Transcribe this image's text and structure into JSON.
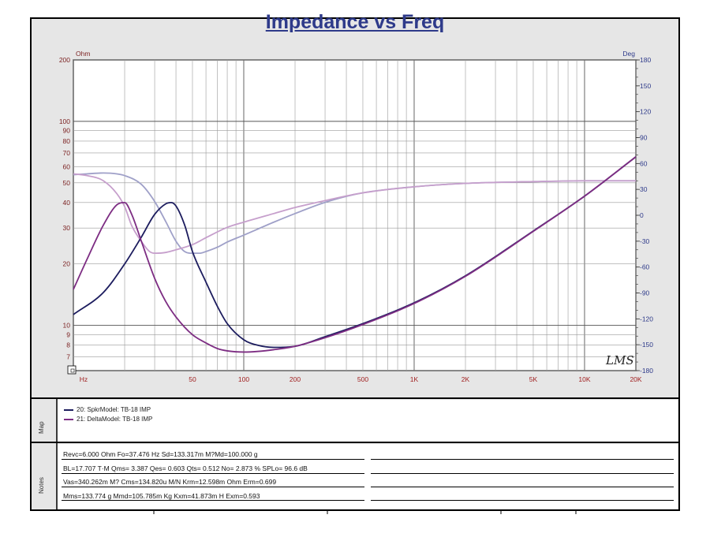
{
  "chart_data": {
    "type": "line",
    "title": "Impedance vs Freq",
    "x_scale": "log",
    "x_range": [
      10,
      20000
    ],
    "x_ticks": [
      {
        "value": 10,
        "label": "Hz"
      },
      {
        "value": 50,
        "label": "50"
      },
      {
        "value": 100,
        "label": "100"
      },
      {
        "value": 200,
        "label": "200"
      },
      {
        "value": 500,
        "label": "500"
      },
      {
        "value": 1000,
        "label": "1K"
      },
      {
        "value": 2000,
        "label": "2K"
      },
      {
        "value": 5000,
        "label": "5K"
      },
      {
        "value": 10000,
        "label": "10K"
      },
      {
        "value": 20000,
        "label": "20K"
      }
    ],
    "y_left": {
      "unit": "Ohm",
      "scale": "log",
      "range": [
        6,
        200
      ],
      "ticks": [
        {
          "value": 200,
          "label": "200"
        },
        {
          "value": 100,
          "label": "100"
        },
        {
          "value": 90,
          "label": "90"
        },
        {
          "value": 80,
          "label": "80"
        },
        {
          "value": 70,
          "label": "70"
        },
        {
          "value": 60,
          "label": "60"
        },
        {
          "value": 50,
          "label": "50"
        },
        {
          "value": 40,
          "label": "40"
        },
        {
          "value": 30,
          "label": "30"
        },
        {
          "value": 20,
          "label": "20"
        },
        {
          "value": 10,
          "label": "10"
        },
        {
          "value": 9,
          "label": "9"
        },
        {
          "value": 8,
          "label": "8"
        },
        {
          "value": 7,
          "label": "7"
        }
      ]
    },
    "y_right": {
      "unit": "Deg",
      "range": [
        -180,
        180
      ],
      "ticks": [
        180,
        150,
        120,
        90,
        60,
        30,
        0,
        -30,
        -60,
        -90,
        -120,
        -150,
        -180
      ]
    },
    "grid": true,
    "series": [
      {
        "name": "20: SpkrModel: TB-18 IMP",
        "color": "#1c1c5e",
        "kind": "magnitude",
        "x": [
          10,
          15,
          20,
          25,
          30,
          35,
          37.5,
          40,
          45,
          50,
          60,
          70,
          80,
          100,
          120,
          150,
          200,
          300,
          500,
          1000,
          2000,
          5000,
          10000,
          20000
        ],
        "y": [
          11.3,
          14.5,
          20,
          27,
          35,
          39.5,
          40,
          38.5,
          31,
          23,
          16.3,
          12.4,
          10.2,
          8.5,
          8.0,
          7.8,
          7.9,
          8.8,
          10.2,
          12.9,
          17.5,
          29,
          43,
          67
        ]
      },
      {
        "name": "21: DeltaModel: TB-18 IMP",
        "color": "#7d2d83",
        "kind": "magnitude",
        "x": [
          10,
          12,
          15,
          18,
          20,
          22,
          25,
          30,
          35,
          40,
          50,
          60,
          70,
          80,
          100,
          120,
          150,
          200,
          300,
          500,
          1000,
          2000,
          5000,
          10000,
          20000
        ],
        "y": [
          15,
          21,
          31,
          39,
          40,
          35,
          26,
          17,
          13,
          11,
          9,
          8.2,
          7.7,
          7.5,
          7.4,
          7.45,
          7.6,
          7.9,
          8.7,
          10.1,
          12.8,
          17.4,
          28.9,
          43,
          67
        ]
      },
      {
        "name": "20: SpkrModel: TB-18 IMP (phase)",
        "color": "#9fa0c8",
        "kind": "phase",
        "x": [
          10,
          12,
          15,
          18,
          20,
          25,
          30,
          35,
          40,
          45,
          50,
          55,
          60,
          70,
          80,
          100,
          150,
          200,
          300,
          500,
          1000,
          2000,
          5000,
          10000,
          20000
        ],
        "y": [
          47,
          48,
          49,
          48,
          46,
          36,
          16,
          -8,
          -30,
          -42,
          -44,
          -44,
          -42,
          -37,
          -31,
          -23,
          -8,
          2,
          15,
          26,
          33,
          37,
          39,
          40,
          40
        ]
      },
      {
        "name": "21: DeltaModel: TB-18 IMP (phase)",
        "color": "#c69fcc",
        "kind": "phase",
        "x": [
          10,
          12,
          15,
          18,
          20,
          22,
          25,
          28,
          30,
          35,
          40,
          50,
          60,
          80,
          100,
          150,
          200,
          300,
          500,
          1000,
          2000,
          5000,
          10000,
          20000
        ],
        "y": [
          48,
          46,
          40,
          25,
          10,
          -12,
          -30,
          -42,
          -44,
          -43,
          -40,
          -34,
          -26,
          -14,
          -8,
          2,
          9,
          17,
          26,
          33,
          37,
          39,
          40,
          40
        ]
      }
    ]
  },
  "map_panel": {
    "label": "Map",
    "legend": [
      {
        "text": "20: SpkrModel: TB-18 IMP",
        "color": "#1c1c5e"
      },
      {
        "text": "21: DeltaModel: TB-18 IMP",
        "color": "#7d2d83"
      }
    ]
  },
  "notes_panel": {
    "label": "Notes",
    "lines": [
      "Revc=6.000 Ohm  Fo=37.476 Hz  Sd=133.317m M?Md=100.000 g",
      "BL=17.707 T·M  Qms= 3.387  Qes= 0.603  Qts= 0.512  No= 2.873 %  SPLo= 96.6 dB",
      "Vas=340.262m M? Cms=134.820u M/N  Krm=12.598m Ohm  Erm=0.699",
      "Mms=133.774 g  Mmd=105.785m Kg  Kxm=41.873m H  Exm=0.593"
    ]
  },
  "watermark": "LMS",
  "colors": {
    "panel_bg": "#e6e6e6",
    "plot_bg": "#ffffff",
    "title": "#2e3a8a",
    "left_axis_labels": "#7a1f1f",
    "right_axis_labels": "#2e3a8a",
    "x_axis_labels": "#a02020"
  }
}
